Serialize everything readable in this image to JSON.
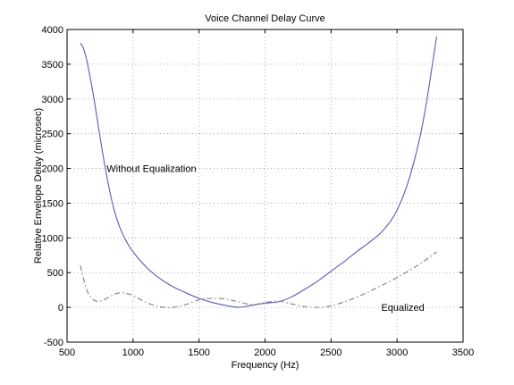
{
  "chart_data": {
    "type": "line",
    "title": "Voice Channel Delay Curve",
    "xlabel": "Frequency (Hz)",
    "ylabel": "Relative Envelope Delay (microsec)",
    "xlim": [
      500,
      3500
    ],
    "ylim": [
      -500,
      4000
    ],
    "xticks": [
      500,
      1000,
      1500,
      2000,
      2500,
      3000,
      3500
    ],
    "yticks": [
      -500,
      0,
      500,
      1000,
      1500,
      2000,
      2500,
      3000,
      3500,
      4000
    ],
    "grid": true,
    "series": [
      {
        "name": "Without Equalization",
        "style": "solid",
        "color": "#5a5ab8",
        "x": [
          600,
          620,
          650,
          700,
          750,
          800,
          850,
          900,
          950,
          1000,
          1100,
          1200,
          1300,
          1400,
          1500,
          1600,
          1700,
          1800,
          1900,
          2000,
          2100,
          2200,
          2300,
          2400,
          2500,
          2600,
          2700,
          2800,
          2900,
          3000,
          3100,
          3200,
          3300
        ],
        "y": [
          3800,
          3750,
          3550,
          3050,
          2450,
          1900,
          1450,
          1150,
          950,
          800,
          580,
          420,
          300,
          210,
          130,
          70,
          30,
          0,
          30,
          60,
          80,
          150,
          260,
          380,
          520,
          660,
          810,
          950,
          1120,
          1400,
          1900,
          2700,
          3900
        ]
      },
      {
        "name": "Equalized",
        "style": "dashed",
        "color": "#808080",
        "x": [
          600,
          650,
          700,
          750,
          800,
          850,
          900,
          950,
          1000,
          1100,
          1200,
          1300,
          1400,
          1500,
          1600,
          1700,
          1800,
          1900,
          2000,
          2100,
          2200,
          2300,
          2400,
          2500,
          2600,
          2700,
          2800,
          2900,
          3000,
          3100,
          3200,
          3300
        ],
        "y": [
          600,
          250,
          110,
          90,
          130,
          180,
          210,
          200,
          170,
          70,
          10,
          0,
          40,
          110,
          130,
          120,
          80,
          40,
          70,
          90,
          50,
          10,
          0,
          20,
          80,
          150,
          240,
          330,
          430,
          540,
          660,
          800
        ]
      }
    ],
    "annotations": [
      {
        "text": "Without Equalization",
        "x": 800,
        "y": 2000
      },
      {
        "text": "Equalized",
        "x": 2880,
        "y": 0
      }
    ]
  }
}
